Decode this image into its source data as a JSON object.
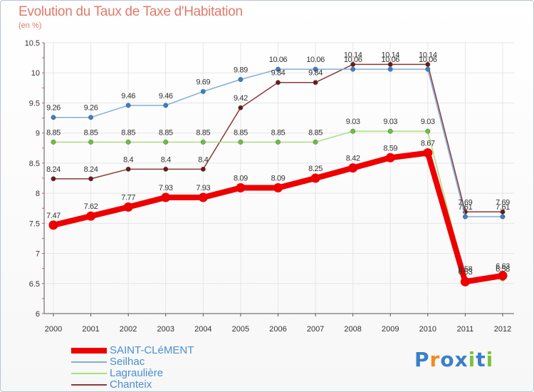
{
  "title": "Evolution du Taux de Taxe d'Habitation",
  "unit": "(en %)",
  "logo": {
    "text": "Proxiti",
    "letters": [
      {
        "ch": "P",
        "color": "#3a7fc8"
      },
      {
        "ch": "r",
        "color": "#f08a24"
      },
      {
        "ch": "o",
        "color": "#3a7fc8"
      },
      {
        "ch": "x",
        "color": "#3a7fc8"
      },
      {
        "ch": "i",
        "color": "#7dc242"
      },
      {
        "ch": "t",
        "color": "#3a7fc8"
      },
      {
        "ch": "i",
        "color": "#7dc242"
      }
    ]
  },
  "chart_data": {
    "type": "line",
    "categories": [
      "2000",
      "2001",
      "2002",
      "2003",
      "2004",
      "2005",
      "2006",
      "2007",
      "2008",
      "2009",
      "2010",
      "2011",
      "2012"
    ],
    "ylim": [
      6,
      10.5
    ],
    "yticks": [
      "6",
      "6.5",
      "7",
      "7.5",
      "8",
      "8.5",
      "9",
      "9.5",
      "10",
      "10.5"
    ],
    "legend_position": "bottom",
    "series": [
      {
        "name": "SAINT-CLéMENT",
        "color": "#ee0000",
        "marker": "#ee0000",
        "values": [
          7.47,
          7.62,
          7.77,
          7.93,
          7.93,
          8.09,
          8.09,
          8.25,
          8.42,
          8.59,
          8.67,
          6.53,
          6.63
        ],
        "labels": [
          "7.47",
          "7.62",
          "7.77",
          "7.93",
          "7.93",
          "8.09",
          "8.09",
          "8.25",
          "8.42",
          "8.59",
          "8.67",
          "6.53",
          "6.63"
        ]
      },
      {
        "name": "Seilhac",
        "color": "#7fb0d8",
        "marker": "#3a7fc8",
        "values": [
          9.26,
          9.26,
          9.46,
          9.46,
          9.69,
          9.89,
          10.06,
          10.06,
          10.06,
          10.06,
          10.06,
          7.61,
          7.61
        ],
        "labels": [
          "9.26",
          "9.26",
          "9.46",
          "9.46",
          "9.69",
          "9.89",
          "10.06",
          "10.06",
          "10.06",
          "10.06",
          "10.06",
          "7.61",
          "7.61"
        ]
      },
      {
        "name": "Lagraulière",
        "color": "#a8e07c",
        "marker": "#6cc13a",
        "values": [
          8.85,
          8.85,
          8.85,
          8.85,
          8.85,
          8.85,
          8.85,
          8.85,
          9.03,
          9.03,
          9.03,
          6.58,
          6.58
        ],
        "labels": [
          "8.85",
          "8.85",
          "8.85",
          "8.85",
          "8.85",
          "8.85",
          "8.85",
          "8.85",
          "9.03",
          "9.03",
          "9.03",
          "6.58",
          "6.58"
        ]
      },
      {
        "name": "Chanteix",
        "color": "#8a3a3a",
        "marker": "#6a1a1a",
        "values": [
          8.24,
          8.24,
          8.4,
          8.4,
          8.4,
          9.42,
          9.84,
          9.84,
          10.14,
          10.14,
          10.14,
          7.69,
          7.69
        ],
        "labels": [
          "8.24",
          "8.24",
          "8.4",
          "8.4",
          "8.4",
          "9.42",
          "9.84",
          "9.84",
          "10.14",
          "10.14",
          "10.14",
          "7.69",
          "7.69"
        ]
      }
    ]
  }
}
